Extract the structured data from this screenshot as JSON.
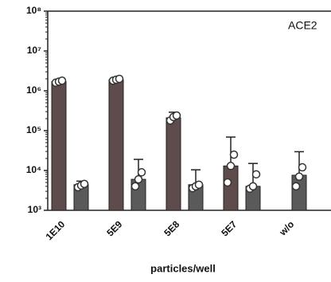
{
  "chart_data": {
    "type": "bar",
    "title": "ACE2",
    "x_label": "particles/well",
    "categories": [
      "1E10",
      "5E9",
      "5E8",
      "5E7",
      "w/o"
    ],
    "log_y": true,
    "ylim": [
      1000,
      100000000
    ],
    "yticks": [
      {
        "value": 1000,
        "label": "10³"
      },
      {
        "value": 10000,
        "label": "10⁴"
      },
      {
        "value": 100000,
        "label": "10⁵"
      },
      {
        "value": 1000000,
        "label": "10⁶"
      },
      {
        "value": 10000000,
        "label": "10⁷"
      },
      {
        "value": 100000000,
        "label": "10⁸"
      }
    ],
    "series": [
      {
        "color": "#5e4c4c",
        "values": [
          1700000,
          1900000,
          210000,
          13000,
          null
        ],
        "errors": [
          200000,
          200000,
          80000,
          56000,
          null
        ],
        "points": [
          [
            1600000,
            1700000,
            1800000
          ],
          [
            1800000,
            1900000,
            2000000
          ],
          [
            180000,
            220000,
            240000
          ],
          [
            5000,
            13000,
            25000
          ],
          null
        ]
      },
      {
        "color": "#5a5a5a",
        "values": [
          4400,
          6000,
          4400,
          4000,
          7600
        ],
        "errors": [
          1000,
          13000,
          6000,
          11000,
          22000
        ],
        "points": [
          [
            3800,
            4200,
            4600
          ],
          [
            4000,
            6000,
            9000
          ],
          [
            3600,
            4000,
            4400
          ],
          [
            3500,
            4000,
            8000
          ],
          [
            4000,
            7000,
            12000
          ]
        ]
      }
    ]
  }
}
